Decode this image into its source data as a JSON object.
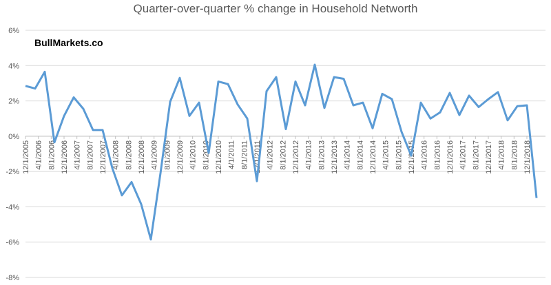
{
  "chart_data": {
    "type": "line",
    "title": "Quarter-over-quarter % change in Household Networth",
    "annotation": "BullMarkets.co",
    "x": [
      "12/1/2005",
      "3/1/2006",
      "6/1/2006",
      "9/1/2006",
      "12/1/2006",
      "3/1/2007",
      "6/1/2007",
      "9/1/2007",
      "12/1/2007",
      "3/1/2008",
      "6/1/2008",
      "9/1/2008",
      "12/1/2008",
      "3/1/2009",
      "6/1/2009",
      "9/1/2009",
      "12/1/2009",
      "3/1/2010",
      "6/1/2010",
      "9/1/2010",
      "12/1/2010",
      "3/1/2011",
      "6/1/2011",
      "9/1/2011",
      "12/1/2011",
      "3/1/2012",
      "6/1/2012",
      "9/1/2012",
      "12/1/2012",
      "3/1/2013",
      "6/1/2013",
      "9/1/2013",
      "12/1/2013",
      "3/1/2014",
      "6/1/2014",
      "9/1/2014",
      "12/1/2014",
      "3/1/2015",
      "6/1/2015",
      "9/1/2015",
      "12/1/2015",
      "3/1/2016",
      "6/1/2016",
      "9/1/2016",
      "12/1/2016",
      "3/1/2017",
      "6/1/2017",
      "9/1/2017",
      "12/1/2017",
      "3/1/2018",
      "6/1/2018",
      "9/1/2018",
      "12/1/2018",
      "3/1/2019"
    ],
    "series": [
      {
        "color": "#5b9bd5",
        "values": [
          2.85,
          2.7,
          3.65,
          -0.35,
          1.15,
          2.2,
          1.55,
          0.35,
          0.35,
          -1.8,
          -3.35,
          -2.6,
          -3.85,
          -5.85,
          -2.1,
          1.95,
          3.3,
          1.15,
          1.9,
          -0.95,
          3.1,
          2.95,
          1.8,
          1.0,
          -2.55,
          2.55,
          3.35,
          0.4,
          3.1,
          1.75,
          4.05,
          1.6,
          3.35,
          3.25,
          1.75,
          1.9,
          0.45,
          2.4,
          2.1,
          0.25,
          -1.1,
          1.9,
          1.0,
          1.35,
          2.45,
          1.2,
          2.3,
          1.65,
          2.1,
          2.5,
          0.9,
          1.7,
          1.75,
          -3.5
        ]
      }
    ],
    "xlim": [
      "12/1/2005",
      "3/1/2019"
    ],
    "xticks": [
      "12/1/2005",
      "4/1/2006",
      "8/1/2006",
      "12/1/2006",
      "4/1/2007",
      "8/1/2007",
      "12/1/2007",
      "4/1/2008",
      "8/1/2008",
      "12/1/2008",
      "4/1/2009",
      "8/1/2009",
      "12/1/2009",
      "4/1/2010",
      "8/1/2010",
      "12/1/2010",
      "4/1/2011",
      "8/1/2011",
      "12/1/2011",
      "4/1/2012",
      "8/1/2012",
      "12/1/2012",
      "4/1/2013",
      "8/1/2013",
      "12/1/2013",
      "4/1/2014",
      "8/1/2014",
      "12/1/2014",
      "4/1/2015",
      "8/1/2015",
      "12/1/2015",
      "4/1/2016",
      "8/1/2016",
      "12/1/2016",
      "4/1/2017",
      "8/1/2017",
      "12/1/2017",
      "4/1/2018",
      "8/1/2018",
      "12/1/2018"
    ],
    "ylim": [
      -8,
      6
    ],
    "yticks": [
      {
        "value": -8,
        "label": "-8%"
      },
      {
        "value": -6,
        "label": "-6%"
      },
      {
        "value": -4,
        "label": "-4%"
      },
      {
        "value": -2,
        "label": "-2%"
      },
      {
        "value": 0,
        "label": "0%"
      },
      {
        "value": 2,
        "label": "2%"
      },
      {
        "value": 4,
        "label": "4%"
      },
      {
        "value": 6,
        "label": "6%"
      }
    ],
    "grid": true
  }
}
